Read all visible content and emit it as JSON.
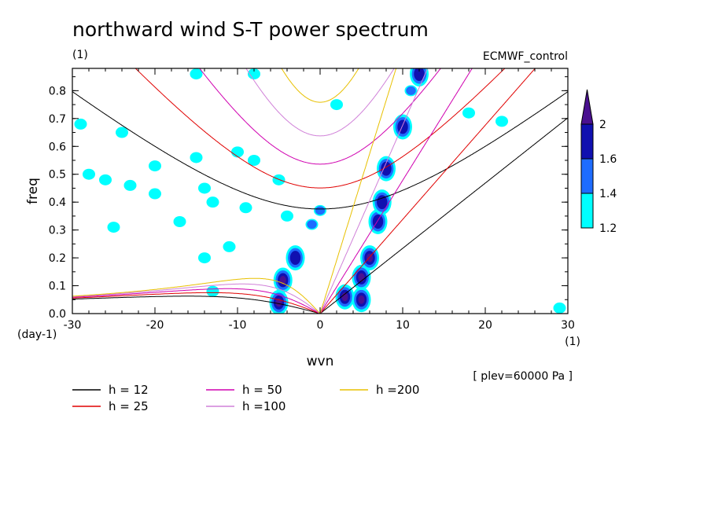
{
  "chart_data": {
    "type": "contour",
    "title": "northward wind S-T power spectrum",
    "title_unit": "(1)",
    "source": "ECMWF_control",
    "xlabel": "wvn",
    "ylabel": "freq",
    "x_unit": "(1)",
    "y_unit": "(day-1)",
    "xlim": [
      -30,
      30
    ],
    "ylim": [
      0,
      0.88
    ],
    "xticks": [
      "-30",
      "-20",
      "-10",
      "0",
      "10",
      "20",
      "30"
    ],
    "yticks": [
      "0.0",
      "0.1",
      "0.2",
      "0.3",
      "0.4",
      "0.5",
      "0.6",
      "0.7",
      "0.8"
    ],
    "plev_note": "[ plev=60000 Pa ]",
    "colorbar": {
      "levels": [
        "1.2",
        "1.4",
        "1.6",
        "2"
      ],
      "colors": [
        "#00ffff",
        "#1e6cff",
        "#1010b0",
        "#4a1090"
      ]
    },
    "dispersion_curves": [
      {
        "label": "h = 12",
        "h": 12,
        "color": "#000000"
      },
      {
        "label": "h = 25",
        "h": 25,
        "color": "#e00000"
      },
      {
        "label": "h = 50",
        "h": 50,
        "color": "#d000b0"
      },
      {
        "label": "h =100",
        "h": 100,
        "color": "#d080d8"
      },
      {
        "label": "h =200",
        "h": 200,
        "color": "#e8c000"
      }
    ],
    "spectral_peaks": [
      {
        "wvn": -5,
        "freq": 0.04,
        "level": 2
      },
      {
        "wvn": -4.5,
        "freq": 0.12,
        "level": 2
      },
      {
        "wvn": -3,
        "freq": 0.2,
        "level": 1.6
      },
      {
        "wvn": 0,
        "freq": 0.37,
        "level": 1.4
      },
      {
        "wvn": -1,
        "freq": 0.32,
        "level": 1.4
      },
      {
        "wvn": 3,
        "freq": 0.06,
        "level": 2
      },
      {
        "wvn": 5,
        "freq": 0.05,
        "level": 2
      },
      {
        "wvn": 5,
        "freq": 0.13,
        "level": 2
      },
      {
        "wvn": 6,
        "freq": 0.2,
        "level": 2
      },
      {
        "wvn": 7,
        "freq": 0.33,
        "level": 1.6
      },
      {
        "wvn": 7.5,
        "freq": 0.4,
        "level": 1.6
      },
      {
        "wvn": 8,
        "freq": 0.52,
        "level": 1.6
      },
      {
        "wvn": 10,
        "freq": 0.67,
        "level": 1.6
      },
      {
        "wvn": 11,
        "freq": 0.8,
        "level": 1.4
      },
      {
        "wvn": 12,
        "freq": 0.86,
        "level": 1.6
      }
    ],
    "noise_peaks": [
      {
        "wvn": -28,
        "freq": 0.5,
        "level": 1.2
      },
      {
        "wvn": -26,
        "freq": 0.48,
        "level": 1.2
      },
      {
        "wvn": -24,
        "freq": 0.65,
        "level": 1.2
      },
      {
        "wvn": -20,
        "freq": 0.53,
        "level": 1.2
      },
      {
        "wvn": -23,
        "freq": 0.46,
        "level": 1.2
      },
      {
        "wvn": -25,
        "freq": 0.31,
        "level": 1.2
      },
      {
        "wvn": -20,
        "freq": 0.43,
        "level": 1.2
      },
      {
        "wvn": -14,
        "freq": 0.45,
        "level": 1.2
      },
      {
        "wvn": -15,
        "freq": 0.56,
        "level": 1.2
      },
      {
        "wvn": -13,
        "freq": 0.4,
        "level": 1.2
      },
      {
        "wvn": -10,
        "freq": 0.58,
        "level": 1.2
      },
      {
        "wvn": -8,
        "freq": 0.55,
        "level": 1.2
      },
      {
        "wvn": -5,
        "freq": 0.48,
        "level": 1.2
      },
      {
        "wvn": -4,
        "freq": 0.35,
        "level": 1.2
      },
      {
        "wvn": -14,
        "freq": 0.2,
        "level": 1.2
      },
      {
        "wvn": -11,
        "freq": 0.24,
        "level": 1.2
      },
      {
        "wvn": -9,
        "freq": 0.38,
        "level": 1.2
      },
      {
        "wvn": -15,
        "freq": 0.86,
        "level": 1.2
      },
      {
        "wvn": -8,
        "freq": 0.86,
        "level": 1.2
      },
      {
        "wvn": -29,
        "freq": 0.68,
        "level": 1.2
      },
      {
        "wvn": 2,
        "freq": 0.75,
        "level": 1.2
      },
      {
        "wvn": 18,
        "freq": 0.72,
        "level": 1.2
      },
      {
        "wvn": 22,
        "freq": 0.69,
        "level": 1.2
      },
      {
        "wvn": 29,
        "freq": 0.02,
        "level": 1.2
      },
      {
        "wvn": -13,
        "freq": 0.08,
        "level": 1.2
      },
      {
        "wvn": -17,
        "freq": 0.33,
        "level": 1.2
      }
    ]
  }
}
